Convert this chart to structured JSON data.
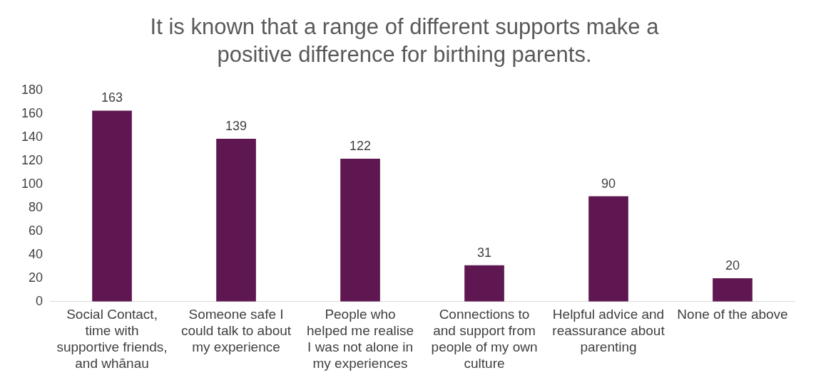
{
  "chart_data": {
    "type": "bar",
    "title": "It is known that a range of different supports make a positive difference for birthing parents.",
    "categories": [
      "Social Contact, time with supportive friends, and whānau",
      "Someone safe I could talk to about my experience",
      "People who helped me realise I was not alone in my experiences",
      "Connections to and support from people of my own culture",
      "Helpful advice and reassurance about parenting",
      "None of the above"
    ],
    "values": [
      163,
      139,
      122,
      31,
      90,
      20
    ],
    "color": "#5e1750",
    "ylim": [
      0,
      180
    ],
    "yticks": [
      0,
      20,
      40,
      60,
      80,
      100,
      120,
      140,
      160,
      180
    ],
    "grid": false,
    "legend": false,
    "data_labels": true
  }
}
